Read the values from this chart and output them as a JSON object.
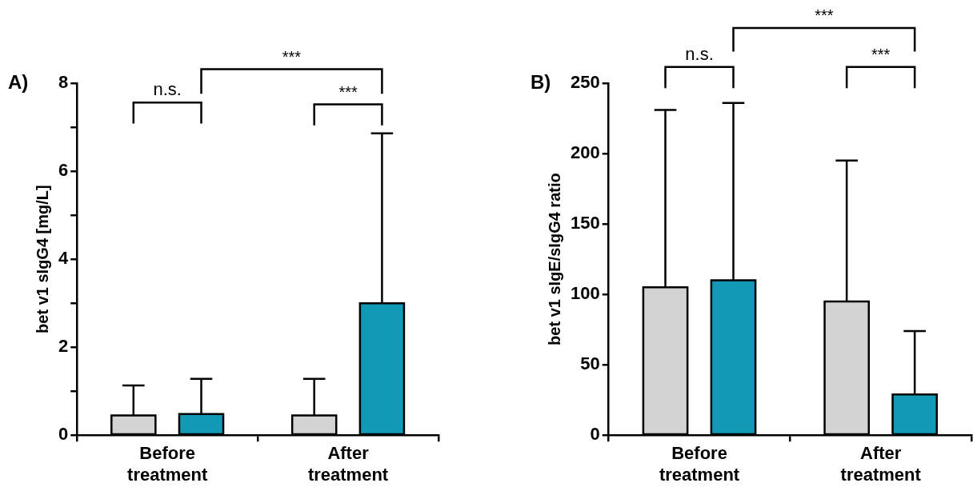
{
  "chart_data": [
    {
      "type": "bar",
      "ylabel": "bet v1 sIgG4 [mg/L]",
      "categories": [
        "Before treatment",
        "After treatment"
      ],
      "series": [
        {
          "color": "#d3d3d3",
          "values": [
            0.45,
            0.45
          ],
          "errors": [
            [
              0.45,
              1.13
            ],
            [
              0.45,
              1.28
            ]
          ]
        },
        {
          "color": "#1199b5",
          "values": [
            0.48,
            3.0
          ],
          "errors": [
            [
              0.48,
              1.28
            ],
            [
              3.0,
              6.86
            ]
          ]
        }
      ],
      "ylim": [
        0,
        8
      ],
      "yticks": [
        0,
        {
          "value": 1,
          "label": null
        },
        2,
        {
          "value": 3,
          "label": null
        },
        4,
        {
          "value": 5,
          "label": null
        },
        6,
        {
          "value": 7,
          "label": null
        },
        8
      ],
      "grid": false,
      "legend": false,
      "annotations": [
        "A)",
        "n.s.",
        "***",
        "***"
      ]
    },
    {
      "type": "bar",
      "ylabel": "bet v1 sIgE/sIgG4 ratio",
      "categories": [
        "Before treatment",
        "After treatment"
      ],
      "series": [
        {
          "color": "#d3d3d3",
          "values": [
            105,
            95
          ],
          "errors": [
            [
              105,
              231
            ],
            [
              95,
              195
            ]
          ]
        },
        {
          "color": "#1199b5",
          "values": [
            110,
            29
          ],
          "errors": [
            [
              110,
              236
            ],
            [
              29,
              74
            ]
          ]
        }
      ],
      "ylim": [
        0,
        250
      ],
      "yticks": [
        0,
        50,
        100,
        150,
        200,
        250
      ],
      "grid": false,
      "legend": false,
      "annotations": [
        "B)",
        "n.s.",
        "***",
        "***"
      ]
    }
  ]
}
